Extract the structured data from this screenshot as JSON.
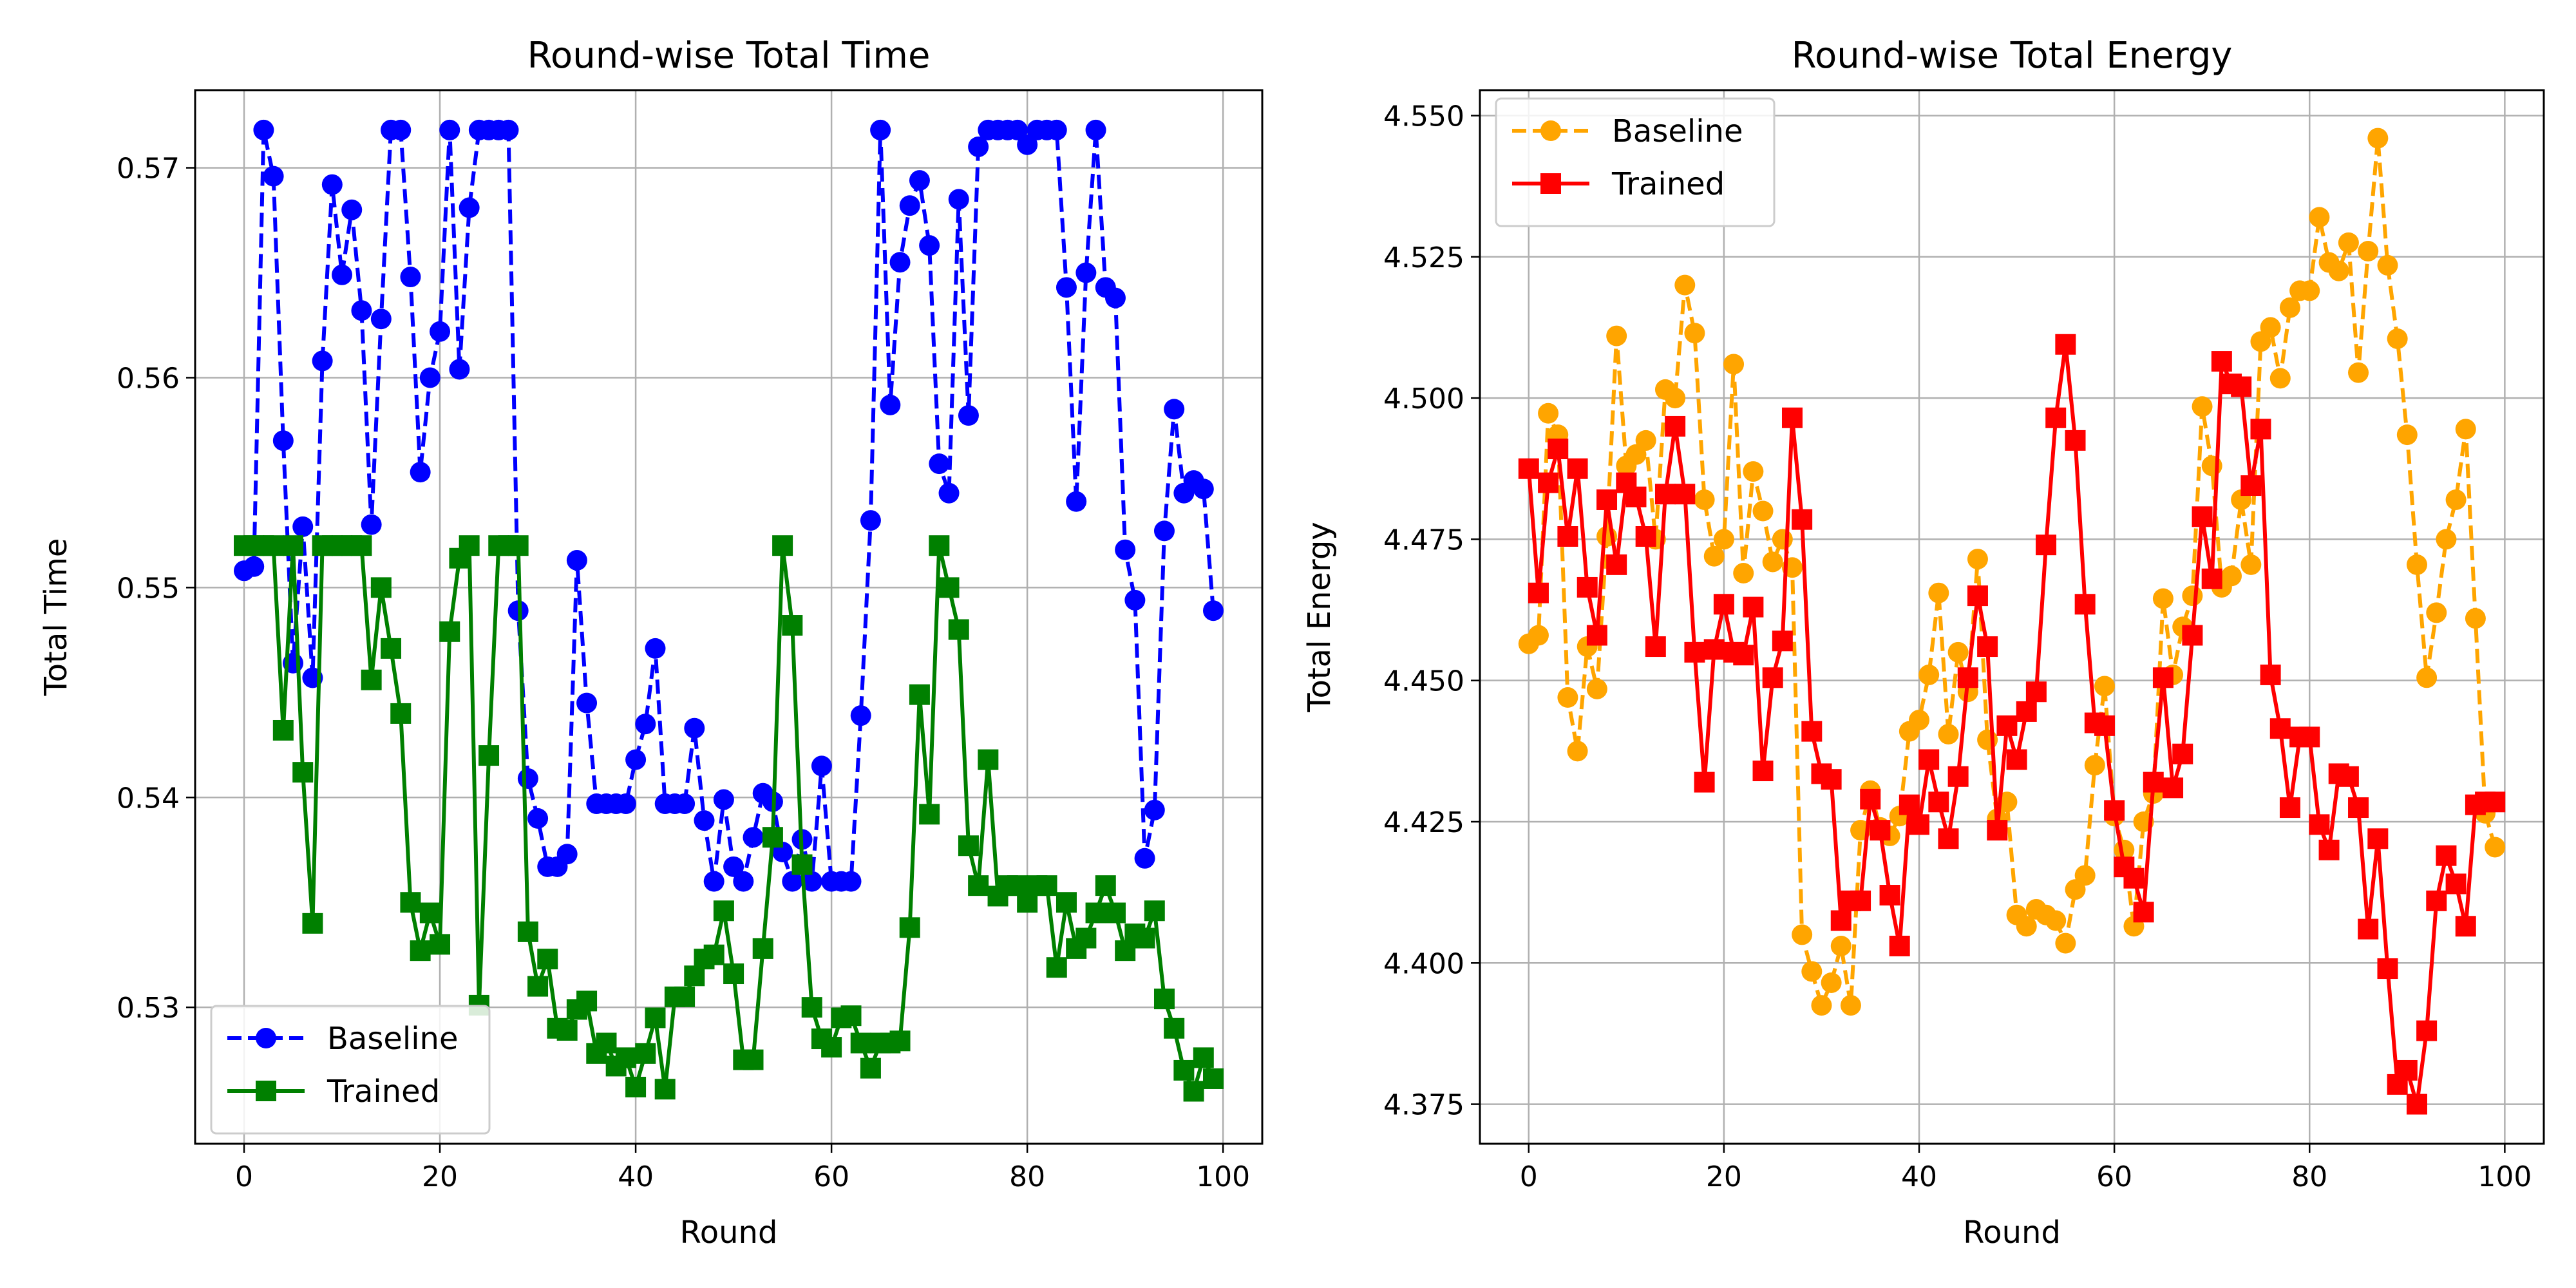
{
  "chart_data": [
    {
      "type": "line",
      "title": "Round-wise Total Time",
      "xlabel": "Round",
      "ylabel": "Total Time",
      "xlim": [
        -5,
        104
      ],
      "ylim": [
        0.5235,
        0.5737
      ],
      "xticks": [
        0,
        20,
        40,
        60,
        80,
        100
      ],
      "yticks": [
        0.53,
        0.54,
        0.55,
        0.56,
        0.57
      ],
      "ytick_labels": [
        "0.53",
        "0.54",
        "0.55",
        "0.56",
        "0.57"
      ],
      "grid": true,
      "legend_position": "lower-left",
      "x": [
        0,
        1,
        2,
        3,
        4,
        5,
        6,
        7,
        8,
        9,
        10,
        11,
        12,
        13,
        14,
        15,
        16,
        17,
        18,
        19,
        20,
        21,
        22,
        23,
        24,
        25,
        26,
        27,
        28,
        29,
        30,
        31,
        32,
        33,
        34,
        35,
        36,
        37,
        38,
        39,
        40,
        41,
        42,
        43,
        44,
        45,
        46,
        47,
        48,
        49,
        50,
        51,
        52,
        53,
        54,
        55,
        56,
        57,
        58,
        59,
        60,
        61,
        62,
        63,
        64,
        65,
        66,
        67,
        68,
        69,
        70,
        71,
        72,
        73,
        74,
        75,
        76,
        77,
        78,
        79,
        80,
        81,
        82,
        83,
        84,
        85,
        86,
        87,
        88,
        89,
        90,
        91,
        92,
        93,
        94,
        95,
        96,
        97,
        98,
        99
      ],
      "series": [
        {
          "name": "Baseline",
          "color": "#0000ff",
          "marker": "circle",
          "linestyle": "dashed",
          "values": [
            0.5508,
            0.551,
            0.5718,
            0.5696,
            0.557,
            0.5464,
            0.5529,
            0.5457,
            0.5608,
            0.5692,
            0.5649,
            0.568,
            0.5632,
            0.553,
            0.5628,
            0.5718,
            0.5718,
            0.5648,
            0.5555,
            0.56,
            0.5622,
            0.5718,
            0.5604,
            0.5681,
            0.5718,
            0.5718,
            0.5718,
            0.5718,
            0.5489,
            0.5409,
            0.539,
            0.5367,
            0.5367,
            0.5373,
            0.5513,
            0.5445,
            0.5397,
            0.5397,
            0.5397,
            0.5397,
            0.5418,
            0.5435,
            0.5471,
            0.5397,
            0.5397,
            0.5397,
            0.5433,
            0.5389,
            0.536,
            0.5399,
            0.5367,
            0.536,
            0.5381,
            0.5402,
            0.5398,
            0.5374,
            0.536,
            0.538,
            0.536,
            0.5415,
            0.536,
            0.536,
            0.536,
            0.5439,
            0.5532,
            0.5718,
            0.5587,
            0.5655,
            0.5682,
            0.5694,
            0.5663,
            0.5559,
            0.5545,
            0.5685,
            0.5582,
            0.571,
            0.5718,
            0.5718,
            0.5718,
            0.5718,
            0.5711,
            0.5718,
            0.5718,
            0.5718,
            0.5643,
            0.5541,
            0.565,
            0.5718,
            0.5643,
            0.5638,
            0.5518,
            0.5494,
            0.5371,
            0.5394,
            0.5527,
            0.5585,
            0.5545,
            0.5551,
            0.5547,
            0.5489
          ]
        },
        {
          "name": "Trained",
          "color": "#008000",
          "marker": "square",
          "linestyle": "solid",
          "values": [
            0.552,
            0.552,
            0.552,
            0.552,
            0.5432,
            0.552,
            0.5412,
            0.534,
            0.552,
            0.552,
            0.552,
            0.552,
            0.552,
            0.5456,
            0.55,
            0.5471,
            0.544,
            0.535,
            0.5327,
            0.5345,
            0.533,
            0.5479,
            0.5514,
            0.552,
            0.5301,
            0.542,
            0.552,
            0.552,
            0.552,
            0.5336,
            0.531,
            0.5323,
            0.529,
            0.5289,
            0.5299,
            0.5303,
            0.5278,
            0.5283,
            0.5272,
            0.5276,
            0.5262,
            0.5278,
            0.5295,
            0.5261,
            0.5305,
            0.5305,
            0.5315,
            0.5323,
            0.5325,
            0.5346,
            0.5316,
            0.5275,
            0.5275,
            0.5328,
            0.5381,
            0.552,
            0.5482,
            0.5368,
            0.53,
            0.5285,
            0.5281,
            0.5295,
            0.5296,
            0.5283,
            0.5271,
            0.5283,
            0.5283,
            0.5284,
            0.5338,
            0.5449,
            0.5392,
            0.552,
            0.55,
            0.548,
            0.5377,
            0.5358,
            0.5418,
            0.5353,
            0.5358,
            0.5358,
            0.535,
            0.5358,
            0.5358,
            0.5319,
            0.535,
            0.5328,
            0.5333,
            0.5345,
            0.5358,
            0.5345,
            0.5327,
            0.5335,
            0.5333,
            0.5346,
            0.5304,
            0.529,
            0.527,
            0.526,
            0.5276,
            0.5266
          ]
        }
      ]
    },
    {
      "type": "line",
      "title": "Round-wise Total Energy",
      "xlabel": "Round",
      "ylabel": "Total Energy",
      "xlim": [
        -5,
        104
      ],
      "ylim": [
        4.368,
        4.5545
      ],
      "xticks": [
        0,
        20,
        40,
        60,
        80,
        100
      ],
      "yticks": [
        4.375,
        4.4,
        4.425,
        4.45,
        4.475,
        4.5,
        4.525,
        4.55
      ],
      "ytick_labels": [
        "4.375",
        "4.400",
        "4.425",
        "4.450",
        "4.475",
        "4.500",
        "4.525",
        "4.550"
      ],
      "grid": true,
      "legend_position": "top-left",
      "x": [
        0,
        1,
        2,
        3,
        4,
        5,
        6,
        7,
        8,
        9,
        10,
        11,
        12,
        13,
        14,
        15,
        16,
        17,
        18,
        19,
        20,
        21,
        22,
        23,
        24,
        25,
        26,
        27,
        28,
        29,
        30,
        31,
        32,
        33,
        34,
        35,
        36,
        37,
        38,
        39,
        40,
        41,
        42,
        43,
        44,
        45,
        46,
        47,
        48,
        49,
        50,
        51,
        52,
        53,
        54,
        55,
        56,
        57,
        58,
        59,
        60,
        61,
        62,
        63,
        64,
        65,
        66,
        67,
        68,
        69,
        70,
        71,
        72,
        73,
        74,
        75,
        76,
        77,
        78,
        79,
        80,
        81,
        82,
        83,
        84,
        85,
        86,
        87,
        88,
        89,
        90,
        91,
        92,
        93,
        94,
        95,
        96,
        97,
        98,
        99
      ],
      "series": [
        {
          "name": "Baseline",
          "color": "#ffa500",
          "marker": "circle",
          "linestyle": "dashed",
          "values": [
            4.4565,
            4.458,
            4.4973,
            4.4935,
            4.447,
            4.4375,
            4.456,
            4.4485,
            4.4755,
            4.511,
            4.488,
            4.49,
            4.4925,
            4.475,
            4.5015,
            4.5,
            4.52,
            4.5115,
            4.482,
            4.472,
            4.475,
            4.506,
            4.469,
            4.487,
            4.48,
            4.471,
            4.475,
            4.47,
            4.405,
            4.3985,
            4.3925,
            4.3965,
            4.403,
            4.3925,
            4.4235,
            4.4305,
            4.424,
            4.4225,
            4.426,
            4.441,
            4.443,
            4.451,
            4.4655,
            4.4405,
            4.455,
            4.448,
            4.4715,
            4.4395,
            4.4255,
            4.4285,
            4.4085,
            4.4065,
            4.4095,
            4.4085,
            4.4075,
            4.4035,
            4.413,
            4.4155,
            4.435,
            4.449,
            4.426,
            4.42,
            4.4065,
            4.425,
            4.43,
            4.4645,
            4.451,
            4.4595,
            4.465,
            4.4985,
            4.488,
            4.4665,
            4.4685,
            4.482,
            4.4705,
            4.51,
            4.5125,
            4.5035,
            4.516,
            4.519,
            4.519,
            4.532,
            4.524,
            4.5225,
            4.5275,
            4.5045,
            4.526,
            4.546,
            4.5235,
            4.5105,
            4.4935,
            4.4705,
            4.4505,
            4.462,
            4.475,
            4.482,
            4.4945,
            4.461,
            4.4265,
            4.4205
          ]
        },
        {
          "name": "Trained",
          "color": "#ff0000",
          "marker": "square",
          "linestyle": "solid",
          "values": [
            4.4875,
            4.4655,
            4.485,
            4.491,
            4.4755,
            4.4875,
            4.4665,
            4.458,
            4.482,
            4.4705,
            4.485,
            4.4825,
            4.4755,
            4.456,
            4.483,
            4.495,
            4.483,
            4.455,
            4.432,
            4.4555,
            4.4635,
            4.455,
            4.4545,
            4.463,
            4.434,
            4.4505,
            4.457,
            4.4965,
            4.4785,
            4.441,
            4.4335,
            4.4325,
            4.4075,
            4.411,
            4.411,
            4.429,
            4.4235,
            4.412,
            4.403,
            4.428,
            4.4245,
            4.436,
            4.4285,
            4.422,
            4.433,
            4.4505,
            4.465,
            4.456,
            4.4235,
            4.442,
            4.436,
            4.4445,
            4.448,
            4.474,
            4.4965,
            4.5095,
            4.4925,
            4.4635,
            4.4425,
            4.442,
            4.427,
            4.417,
            4.415,
            4.409,
            4.432,
            4.4505,
            4.431,
            4.437,
            4.458,
            4.479,
            4.468,
            4.5065,
            4.5025,
            4.502,
            4.4845,
            4.4945,
            4.451,
            4.4415,
            4.4275,
            4.44,
            4.44,
            4.4245,
            4.42,
            4.4335,
            4.433,
            4.4275,
            4.406,
            4.422,
            4.399,
            4.3785,
            4.381,
            4.375,
            4.388,
            4.411,
            4.419,
            4.414,
            4.4065,
            4.428,
            4.4285,
            4.4285
          ]
        }
      ]
    }
  ]
}
